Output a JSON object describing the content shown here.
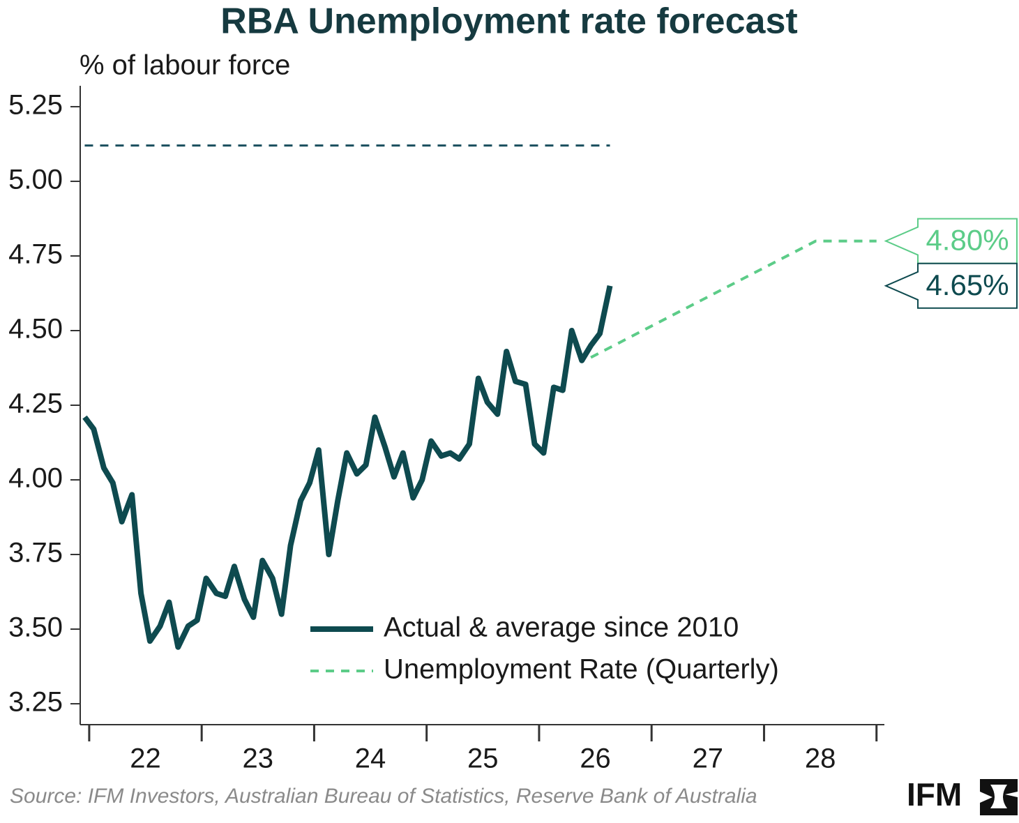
{
  "chart_data": {
    "type": "line",
    "title": "RBA Unemployment rate forecast",
    "y_label": "% of labour force",
    "source": "Source: IFM Investors, Australian Bureau of Statistics, Reserve Bank of Australia",
    "logo": "IFM",
    "xlim": [
      2021.92,
      2029.07
    ],
    "ylim": [
      3.18,
      5.32
    ],
    "xticks": [
      {
        "value": 2022.5,
        "label": "22"
      },
      {
        "value": 2023.5,
        "label": "23"
      },
      {
        "value": 2024.5,
        "label": "24"
      },
      {
        "value": 2025.5,
        "label": "25"
      },
      {
        "value": 2026.5,
        "label": "26"
      },
      {
        "value": 2027.5,
        "label": "27"
      },
      {
        "value": 2028.5,
        "label": "28"
      }
    ],
    "x_tick_marks": [
      2022,
      2023,
      2024,
      2025,
      2026,
      2027,
      2028,
      2029
    ],
    "yticks": [
      5.25,
      {
        "value": 5,
        "label": "5.00"
      },
      4.75,
      {
        "value": 4.5,
        "label": "4.50"
      },
      4.25,
      {
        "value": 4,
        "label": "4.00"
      },
      3.75,
      {
        "value": 3.5,
        "label": "3.50"
      },
      3.25
    ],
    "series": [
      {
        "name": "Actual & average since 2010",
        "color": "#0e4a4f",
        "dash": false,
        "x": [
          2021.96,
          2022.04,
          2022.13,
          2022.21,
          2022.29,
          2022.38,
          2022.46,
          2022.54,
          2022.63,
          2022.71,
          2022.79,
          2022.88,
          2022.96,
          2023.04,
          2023.13,
          2023.21,
          2023.29,
          2023.38,
          2023.46,
          2023.54,
          2023.63,
          2023.71,
          2023.79,
          2023.88,
          2023.96,
          2024.04,
          2024.13,
          2024.21,
          2024.29,
          2024.38,
          2024.46,
          2024.54,
          2024.63,
          2024.71,
          2024.79,
          2024.88,
          2024.96,
          2025.04,
          2025.13,
          2025.21,
          2025.29,
          2025.38,
          2025.46,
          2025.54,
          2025.63,
          2025.71,
          2025.79,
          2025.88,
          2025.96,
          2026.04,
          2026.13,
          2026.21,
          2026.29,
          2026.38,
          2026.46,
          2026.54,
          2026.63
        ],
        "values": [
          4.21,
          4.17,
          4.04,
          3.99,
          3.86,
          3.95,
          3.62,
          3.46,
          3.51,
          3.59,
          3.44,
          3.51,
          3.53,
          3.67,
          3.62,
          3.61,
          3.71,
          3.6,
          3.54,
          3.73,
          3.67,
          3.55,
          3.78,
          3.93,
          3.99,
          4.1,
          3.75,
          3.93,
          4.09,
          4.02,
          4.05,
          4.21,
          4.11,
          4.01,
          4.09,
          3.94,
          4.0,
          4.13,
          4.08,
          4.09,
          4.07,
          4.12,
          4.34,
          4.26,
          4.22,
          4.43,
          4.33,
          4.32,
          4.12,
          4.09,
          4.31,
          4.3,
          4.5,
          4.4,
          4.45,
          4.49,
          4.65
        ]
      },
      {
        "name": "Unemployment Rate (Quarterly)",
        "color": "#5ccc88",
        "dash": true,
        "x": [
          2026.46,
          2028.46,
          2029.0
        ],
        "values": [
          4.41,
          4.8,
          4.8
        ]
      }
    ],
    "average": {
      "color": "#1a4f5e",
      "x": [
        2021.96,
        2026.63
      ],
      "values": [
        5.12,
        5.12
      ]
    },
    "annotations": [
      {
        "value": 4.8,
        "label": "4.80%",
        "color": "#5ccc88"
      },
      {
        "value": 4.65,
        "label": "4.65%",
        "color": "#0e4a4f"
      }
    ]
  }
}
